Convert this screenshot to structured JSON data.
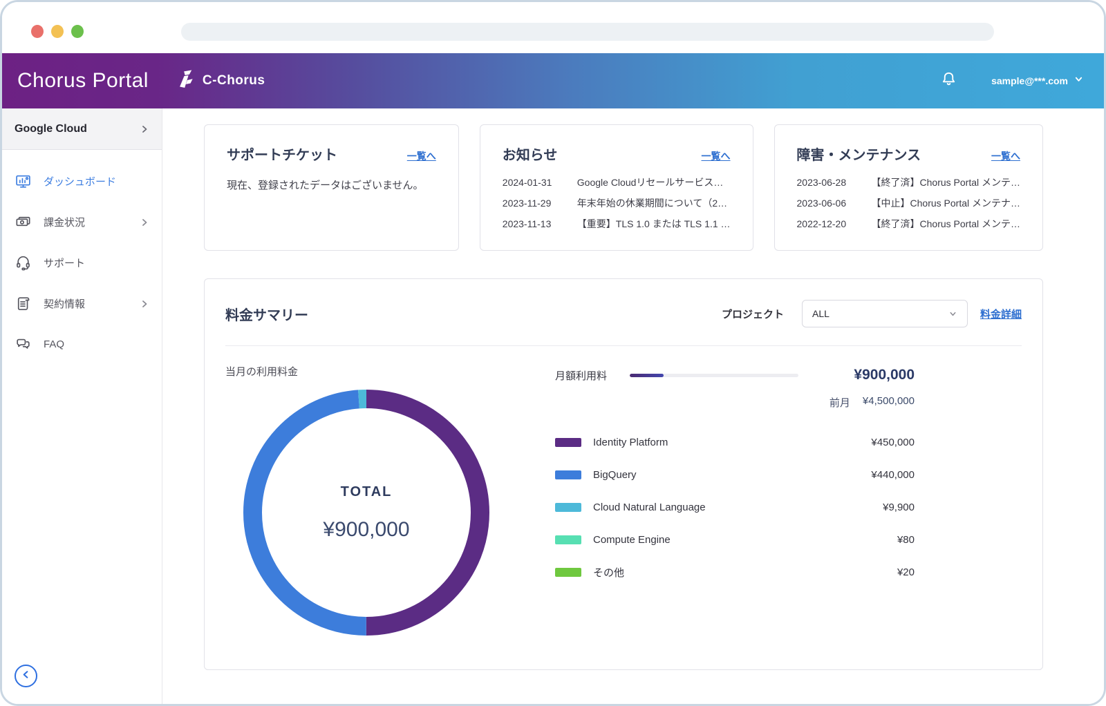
{
  "header": {
    "app_title": "Chorus Portal",
    "logo_text": "C-Chorus",
    "account_email": "sample@***.com"
  },
  "sidebar": {
    "section_label": "Google Cloud",
    "items": [
      {
        "label": "ダッシュボード",
        "icon": "dashboard-icon",
        "active": true
      },
      {
        "label": "課金状況",
        "icon": "billing-icon",
        "has_submenu": true
      },
      {
        "label": "サポート",
        "icon": "support-icon"
      },
      {
        "label": "契約情報",
        "icon": "contract-icon",
        "has_submenu": true
      },
      {
        "label": "FAQ",
        "icon": "faq-icon"
      }
    ]
  },
  "cards": {
    "tickets": {
      "title": "サポートチケット",
      "link_label": "一覧へ",
      "empty_text": "現在、登録されたデータはございません。"
    },
    "news": {
      "title": "お知らせ",
      "link_label": "一覧へ",
      "items": [
        {
          "date": "2024-01-31",
          "text": "Google Cloudリセールサービス…"
        },
        {
          "date": "2023-11-29",
          "text": "年末年始の休業期間について（2…"
        },
        {
          "date": "2023-11-13",
          "text": "【重要】TLS 1.0 または TLS 1.1 …"
        }
      ]
    },
    "maintenance": {
      "title": "障害・メンテナンス",
      "link_label": "一覧へ",
      "items": [
        {
          "date": "2023-06-28",
          "text": "【終了済】Chorus Portal メンテ…"
        },
        {
          "date": "2023-06-06",
          "text": "【中止】Chorus Portal メンテナ…"
        },
        {
          "date": "2022-12-20",
          "text": "【終了済】Chorus Portal メンテ…"
        }
      ]
    }
  },
  "billing": {
    "title": "料金サマリー",
    "project_label": "プロジェクト",
    "project_value": "ALL",
    "detail_link": "料金詳細",
    "current_month_label": "当月の利用料金",
    "monthly_label": "月額利用料",
    "monthly_value": "¥900,000",
    "monthly_progress_percent": 20,
    "prev_label": "前月",
    "prev_value": "¥4,500,000",
    "total_label": "TOTAL",
    "total_value": "¥900,000"
  },
  "chart_data": {
    "type": "pie",
    "donut": true,
    "title": "当月の利用料金",
    "total": 900000,
    "total_display": "¥900,000",
    "legend_position": "right",
    "start_angle_deg": 0,
    "direction": "clockwise",
    "series": [
      {
        "name": "Identity Platform",
        "value": 450000,
        "display": "¥450,000",
        "color": "#5b2c84"
      },
      {
        "name": "BigQuery",
        "value": 440000,
        "display": "¥440,000",
        "color": "#3d7ddb"
      },
      {
        "name": "Cloud Natural Language",
        "value": 9900,
        "display": "¥9,900",
        "color": "#4db9d9"
      },
      {
        "name": "Compute Engine",
        "value": 80,
        "display": "¥80",
        "color": "#57dfb2"
      },
      {
        "name": "その他",
        "value": 20,
        "display": "¥20",
        "color": "#6fc83f"
      }
    ]
  },
  "colors": {
    "header_gradient_start": "#6d2184",
    "header_gradient_end": "#3fa8da",
    "active_nav": "#3c7de0",
    "link_blue": "#2e6fd0"
  }
}
